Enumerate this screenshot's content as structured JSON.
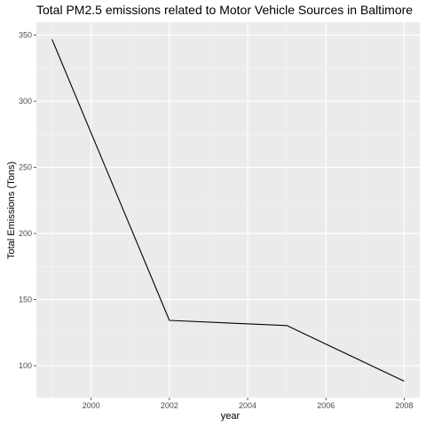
{
  "chart_data": {
    "type": "line",
    "title": "Total PM2.5 emissions related to Motor Vehicle Sources in Baltimore",
    "xlabel": "year",
    "ylabel": "Total Emissions (Tons)",
    "x": [
      1999,
      2002,
      2005,
      2008
    ],
    "series": [
      {
        "values": [
          346.8,
          134.3,
          130.4,
          88.3
        ]
      }
    ],
    "xlim": [
      1998.6,
      2008.4
    ],
    "ylim": [
      75.9,
      359.8
    ],
    "x_ticks": [
      2000,
      2002,
      2004,
      2006,
      2008
    ],
    "x_tick_labels": [
      "2000",
      "2002",
      "2004",
      "2006",
      "2008"
    ],
    "y_ticks": [
      100,
      150,
      200,
      250,
      300,
      350
    ],
    "y_tick_labels": [
      "100",
      "150",
      "200",
      "250",
      "300",
      "350"
    ],
    "grid": true,
    "legend": "none",
    "colors": {
      "panel_background": "#ebebeb",
      "grid_major": "#ffffff",
      "grid_minor": "#f5f5f5",
      "line": "#000000",
      "tick_text": "#4d4d4d",
      "tick_mark": "#333333"
    }
  }
}
